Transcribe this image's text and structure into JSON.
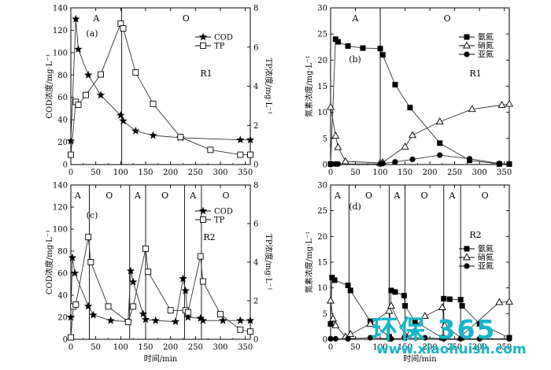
{
  "xlabel": "时间/min",
  "watermark": {
    "logo_text": "环保 365",
    "url": "www.xiaohuish.com",
    "color": "#16b6c9"
  },
  "colors": {
    "axis": "#000000",
    "series": "#333333"
  },
  "chart_data": [
    {
      "type": "line",
      "panel": "(a)",
      "reactor": "R1",
      "ylabel_left": "COD浓度/mg·L⁻¹",
      "ylabel_right": "TP浓度/mg·L⁻¹",
      "xlim": [
        0,
        360
      ],
      "ylim_left": [
        0,
        140
      ],
      "ylim_right": [
        0,
        8
      ],
      "xticks": [
        0,
        50,
        100,
        150,
        200,
        250,
        300,
        350
      ],
      "yticks_left": [
        0,
        20,
        40,
        60,
        80,
        100,
        120,
        140
      ],
      "yticks_right": [
        0,
        2,
        4,
        6,
        8
      ],
      "phase_lines": [
        102
      ],
      "phase_labels": [
        {
          "x": 51,
          "label": "A"
        },
        {
          "x": 231,
          "label": "O"
        }
      ],
      "series": [
        {
          "name": "COD",
          "marker": "star",
          "axis": "left",
          "x": [
            0,
            10,
            15,
            35,
            60,
            100,
            105,
            130,
            165,
            220,
            340,
            360
          ],
          "y": [
            21,
            130,
            103,
            80,
            62,
            44,
            39,
            30,
            26,
            24,
            22,
            22
          ]
        },
        {
          "name": "TP",
          "marker": "square-open",
          "axis": "right",
          "x": [
            0,
            10,
            15,
            30,
            60,
            100,
            105,
            130,
            165,
            220,
            280,
            340,
            360
          ],
          "y": [
            0.5,
            3.2,
            3.05,
            3.55,
            4.6,
            7.2,
            6.95,
            4.7,
            3.1,
            1.4,
            0.75,
            0.5,
            0.5
          ]
        }
      ]
    },
    {
      "type": "line",
      "panel": "(b)",
      "reactor": "R1",
      "ylabel_left": "氮素浓度/mg·L⁻¹",
      "xlim": [
        0,
        360
      ],
      "ylim_left": [
        0,
        30
      ],
      "xticks": [
        0,
        50,
        100,
        150,
        200,
        250,
        300,
        350
      ],
      "yticks_left": [
        0,
        5,
        10,
        15,
        20,
        25,
        30
      ],
      "phase_lines": [
        100
      ],
      "phase_labels": [
        {
          "x": 50,
          "label": "A"
        },
        {
          "x": 235,
          "label": "O"
        }
      ],
      "series": [
        {
          "name": "氨氮",
          "marker": "square-filled",
          "x": [
            0,
            10,
            15,
            35,
            65,
            100,
            105,
            130,
            160,
            220,
            280,
            340,
            360
          ],
          "y": [
            0.1,
            24,
            23.5,
            22.7,
            22.3,
            22.2,
            21,
            15.3,
            10.9,
            4.1,
            0.8,
            0.1,
            0.1
          ]
        },
        {
          "name": "硝氮",
          "marker": "triangle-open",
          "x": [
            0,
            10,
            15,
            30,
            100,
            105,
            150,
            165,
            220,
            285,
            345,
            360
          ],
          "y": [
            11,
            5.5,
            3.3,
            0.6,
            0.3,
            0.4,
            3.4,
            5.6,
            8.2,
            10.6,
            11.4,
            11.6
          ]
        },
        {
          "name": "亚氮",
          "marker": "circle-filled",
          "x": [
            0,
            10,
            15,
            100,
            105,
            130,
            165,
            220,
            280,
            340,
            360
          ],
          "y": [
            0,
            0.1,
            0.1,
            0.1,
            0.2,
            0.5,
            1.0,
            1.8,
            1.1,
            0.2,
            0.1
          ]
        }
      ]
    },
    {
      "type": "line",
      "panel": "(c)",
      "reactor": "R2",
      "ylabel_left": "COD浓度/mg·L⁻¹",
      "ylabel_right": "TP浓度/mg·L⁻¹",
      "xlim": [
        0,
        360
      ],
      "ylim_left": [
        0,
        140
      ],
      "ylim_right": [
        0,
        8
      ],
      "xticks": [
        0,
        50,
        100,
        150,
        200,
        250,
        300,
        350
      ],
      "yticks_left": [
        0,
        20,
        40,
        60,
        80,
        100,
        120,
        140
      ],
      "yticks_right": [
        0,
        2,
        4,
        6,
        8
      ],
      "phase_lines": [
        37,
        118,
        150,
        228,
        262
      ],
      "phase_labels": [
        {
          "x": 14,
          "label": "A"
        },
        {
          "x": 77,
          "label": "O"
        },
        {
          "x": 134,
          "label": "A"
        },
        {
          "x": 189,
          "label": "O"
        },
        {
          "x": 245,
          "label": "A"
        },
        {
          "x": 311,
          "label": "O"
        }
      ],
      "series": [
        {
          "name": "COD",
          "marker": "star",
          "axis": "left",
          "x": [
            0,
            3,
            8,
            35,
            45,
            80,
            115,
            120,
            125,
            145,
            150,
            170,
            210,
            225,
            230,
            235,
            260,
            265,
            305,
            340,
            360
          ],
          "y": [
            20,
            74,
            60,
            30,
            22,
            17,
            16,
            62,
            52,
            23,
            18,
            17,
            16,
            55,
            44,
            20,
            19,
            17,
            17,
            17,
            17
          ]
        },
        {
          "name": "TP",
          "marker": "square-open",
          "axis": "right",
          "x": [
            0,
            5,
            10,
            35,
            40,
            75,
            115,
            125,
            150,
            155,
            200,
            230,
            235,
            260,
            265,
            300,
            340,
            360
          ],
          "y": [
            0.1,
            1.7,
            1.8,
            5.3,
            4.0,
            1.7,
            0.9,
            1.7,
            4.7,
            3.5,
            1.5,
            1.5,
            1.4,
            4.3,
            3.0,
            1.3,
            0.5,
            0.4
          ]
        }
      ]
    },
    {
      "type": "line",
      "panel": "(d)",
      "reactor": "R2",
      "ylabel_left": "氮素浓度/mg·L⁻¹",
      "xlim": [
        0,
        360
      ],
      "ylim_left": [
        0,
        30
      ],
      "xticks": [
        0,
        50,
        100,
        150,
        200,
        250,
        300,
        350
      ],
      "yticks_left": [
        0,
        5,
        10,
        15,
        20,
        25,
        30
      ],
      "phase_lines": [
        37,
        118,
        150,
        228,
        262
      ],
      "phase_labels": [
        {
          "x": 14,
          "label": "A"
        },
        {
          "x": 77,
          "label": "O"
        },
        {
          "x": 134,
          "label": "A"
        },
        {
          "x": 189,
          "label": "O"
        },
        {
          "x": 245,
          "label": "A"
        },
        {
          "x": 311,
          "label": "O"
        }
      ],
      "series": [
        {
          "name": "氨氮",
          "marker": "square-filled",
          "x": [
            0,
            3,
            8,
            35,
            40,
            80,
            118,
            122,
            130,
            148,
            150,
            170,
            225,
            228,
            240,
            262,
            265,
            300,
            360
          ],
          "y": [
            3,
            12,
            11.5,
            10.5,
            9.5,
            3.5,
            0.5,
            9.5,
            9.2,
            8.5,
            6.5,
            3.5,
            0.3,
            7.9,
            7.8,
            7.7,
            6.5,
            3.0,
            0.3
          ]
        },
        {
          "name": "硝氮",
          "marker": "triangle-open",
          "x": [
            0,
            5,
            10,
            30,
            40,
            80,
            118,
            122,
            150,
            160,
            190,
            225,
            230,
            262,
            265,
            340,
            360
          ],
          "y": [
            7.5,
            4.0,
            2.7,
            0.5,
            1.0,
            3.0,
            5.5,
            6.5,
            0.8,
            1.2,
            4.5,
            6.2,
            2.7,
            0.3,
            0.8,
            7.2,
            7.3
          ]
        },
        {
          "name": "亚氮",
          "marker": "circle-filled",
          "x": [
            0,
            10,
            35,
            80,
            118,
            122,
            150,
            190,
            228,
            262,
            300,
            360
          ],
          "y": [
            0.1,
            0.1,
            0.1,
            0.3,
            0.1,
            0.1,
            0.2,
            0.3,
            0.1,
            0.1,
            0.1,
            0.1
          ]
        }
      ]
    }
  ]
}
